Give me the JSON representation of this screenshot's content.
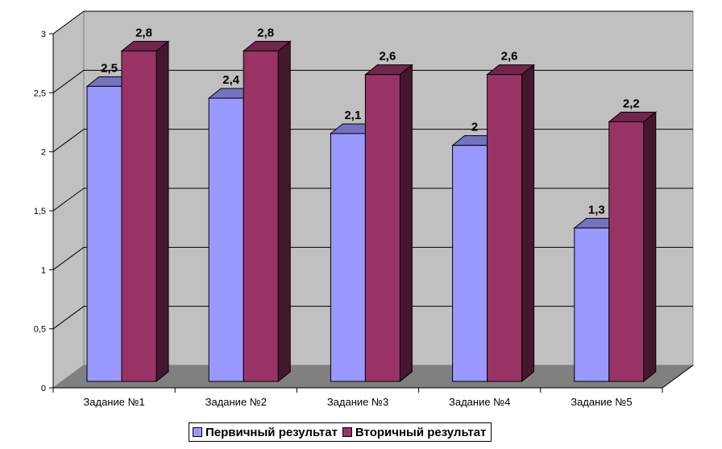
{
  "chart_data": {
    "type": "bar",
    "categories": [
      "Задание №1",
      "Задание №2",
      "Задание №3",
      "Задание №4",
      "Задание №5"
    ],
    "series": [
      {
        "name": "Первичный результат",
        "values": [
          2.5,
          2.4,
          2.1,
          2,
          1.3
        ],
        "data_labels": [
          "2,5",
          "2,4",
          "2,1",
          "2",
          "1,3"
        ],
        "color": "#9999ff"
      },
      {
        "name": "Вторичный результат",
        "values": [
          2.8,
          2.8,
          2.6,
          2.6,
          2.2
        ],
        "data_labels": [
          "2,8",
          "2,8",
          "2,6",
          "2,6",
          "2,2"
        ],
        "color": "#993366"
      }
    ],
    "yticks": [
      "0",
      "0,5",
      "1",
      "1,5",
      "2",
      "2,5",
      "3"
    ],
    "ylim": [
      0,
      3
    ],
    "grid": true,
    "legend": "bottom",
    "three_d": true,
    "wall_color": "#c0c0c0",
    "floor_color": "#808080"
  }
}
